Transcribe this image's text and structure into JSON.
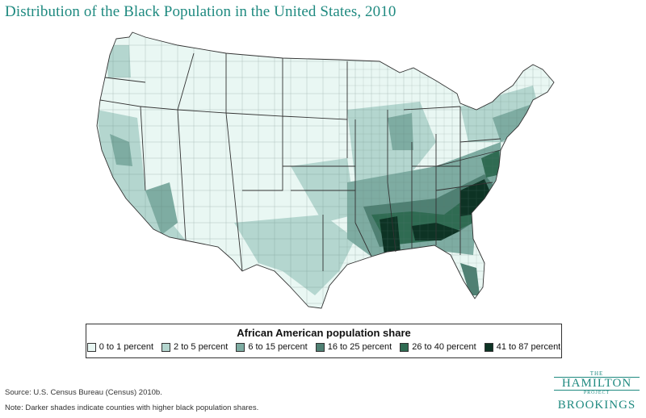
{
  "title": "Distribution of the Black Population in the United States, 2010",
  "legend": {
    "title": "African American population share",
    "items": [
      {
        "label": "0 to 1 percent",
        "color": "#e9f7f3"
      },
      {
        "label": "2 to 5 percent",
        "color": "#b4d6cf"
      },
      {
        "label": "6 to 15 percent",
        "color": "#7eaca2"
      },
      {
        "label": "16 to 25 percent",
        "color": "#4f8073"
      },
      {
        "label": "26 to 40 percent",
        "color": "#2f6b52"
      },
      {
        "label": "41 to 87 percent",
        "color": "#0d3324"
      }
    ]
  },
  "source": "Source: U.S. Census Bureau (Census) 2010b.",
  "note": "Note: Darker shades indicate counties with higher black population shares.",
  "brand": {
    "the": "THE",
    "hamilton": "HAMILTON",
    "project": "PROJECT",
    "brookings": "BROOKINGS"
  }
}
